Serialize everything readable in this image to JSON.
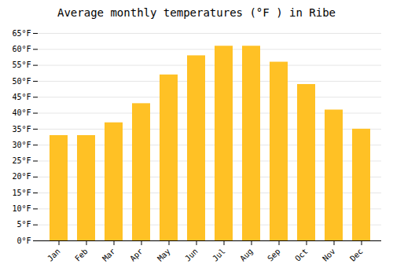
{
  "chart_data": {
    "type": "bar",
    "title": "Average monthly temperatures (°F ) in Ribe",
    "categories": [
      "Jan",
      "Feb",
      "Mar",
      "Apr",
      "May",
      "Jun",
      "Jul",
      "Aug",
      "Sep",
      "Oct",
      "Nov",
      "Dec"
    ],
    "values": [
      33,
      33,
      37,
      43,
      52,
      58,
      61,
      61,
      56,
      49,
      41,
      35
    ],
    "color": "#FFC125",
    "ylim": [
      0,
      65
    ],
    "yticks": [
      {
        "value": 0,
        "label": "0°F"
      },
      {
        "value": 5,
        "label": "5°F"
      },
      {
        "value": 10,
        "label": "10°F"
      },
      {
        "value": 15,
        "label": "15°F"
      },
      {
        "value": 20,
        "label": "20°F"
      },
      {
        "value": 25,
        "label": "25°F"
      },
      {
        "value": 30,
        "label": "30°F"
      },
      {
        "value": 35,
        "label": "35°F"
      },
      {
        "value": 40,
        "label": "40°F"
      },
      {
        "value": 45,
        "label": "45°F"
      },
      {
        "value": 50,
        "label": "50°F"
      },
      {
        "value": 55,
        "label": "55°F"
      },
      {
        "value": 60,
        "label": "60°F"
      },
      {
        "value": 65,
        "label": "65°F"
      }
    ],
    "grid": true
  }
}
